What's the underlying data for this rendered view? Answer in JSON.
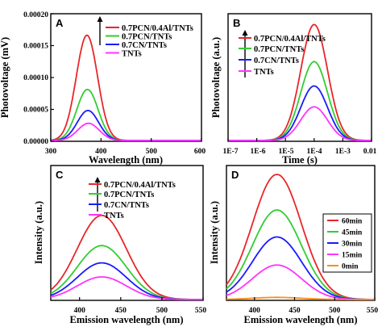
{
  "chart_data": [
    {
      "panel": "A",
      "type": "line",
      "xlabel": "Wavelength (nm)",
      "ylabel": "Photovoltage (mV)",
      "xlim": [
        300,
        600
      ],
      "ylim": [
        0,
        0.0002
      ],
      "x_ticks": [
        "300",
        "400",
        "500",
        "600"
      ],
      "y_ticks": [
        "0.00000",
        "0.00005",
        "0.00010",
        "0.00015",
        "0.00020"
      ],
      "legend_position": "top-right",
      "series": [
        {
          "name": "0.7PCN/0.4Al/TNTs",
          "color": "#e8262a",
          "peak_x": 372,
          "peak_y": 0.000165,
          "fwhm": 50
        },
        {
          "name": "0.7PCN/TNTs",
          "color": "#33cc33",
          "peak_x": 373,
          "peak_y": 8e-05,
          "fwhm": 50
        },
        {
          "name": "0.7CN/TNTs",
          "color": "#1a1aff",
          "peak_x": 374,
          "peak_y": 4.7e-05,
          "fwhm": 50
        },
        {
          "name": "TNTs",
          "color": "#ff33ff",
          "peak_x": 375,
          "peak_y": 2.7e-05,
          "fwhm": 50
        }
      ]
    },
    {
      "panel": "B",
      "type": "line",
      "xscale": "log",
      "xlabel": "Time (s)",
      "ylabel": "Photovoltage (a.u.)",
      "xlim": [
        1e-07,
        0.01
      ],
      "ylim": [
        0,
        1.1
      ],
      "x_ticks": [
        "1E-7",
        "1E-6",
        "1E-5",
        "1E-4",
        "1E-3",
        "0.01"
      ],
      "legend_position": "top-left",
      "series": [
        {
          "name": "0.7PCN/0.4Al/TNTs",
          "color": "#e8262a",
          "peak_x": 0.0001,
          "peak_y": 1.0,
          "width_decades": 1.1
        },
        {
          "name": "0.7PCN/TNTs",
          "color": "#33cc33",
          "peak_x": 0.0001,
          "peak_y": 0.68,
          "width_decades": 1.1
        },
        {
          "name": "0.7CN/TNTs",
          "color": "#1a1aff",
          "peak_x": 0.0001,
          "peak_y": 0.47,
          "width_decades": 1.1
        },
        {
          "name": "TNTs",
          "color": "#ff33ff",
          "peak_x": 0.0001,
          "peak_y": 0.29,
          "width_decades": 1.1
        }
      ]
    },
    {
      "panel": "C",
      "type": "line",
      "xlabel": "Emission wavelength (nm)",
      "ylabel": "Intensity (a.u.)",
      "xlim": [
        365,
        550
      ],
      "ylim": [
        0,
        1.25
      ],
      "x_ticks": [
        "400",
        "450",
        "500",
        "550"
      ],
      "legend_position": "top-center",
      "series": [
        {
          "name": "0.7PCN/0.4Al/TNTs",
          "color": "#e8262a",
          "peak_x": 427,
          "peak_y": 0.78,
          "fwhm": 70
        },
        {
          "name": "0.7PCN/TNTs",
          "color": "#33cc33",
          "peak_x": 427,
          "peak_y": 0.5,
          "fwhm": 70
        },
        {
          "name": "0.7CN/TNTs",
          "color": "#1a1aff",
          "peak_x": 427,
          "peak_y": 0.34,
          "fwhm": 70
        },
        {
          "name": "TNTs",
          "color": "#ff33ff",
          "peak_x": 427,
          "peak_y": 0.21,
          "fwhm": 70
        }
      ]
    },
    {
      "panel": "D",
      "type": "line",
      "xlabel": "Emission wavelength (nm)",
      "ylabel": "Intensity (a.u.)",
      "xlim": [
        365,
        550
      ],
      "ylim": [
        0,
        1.25
      ],
      "x_ticks": [
        "400",
        "450",
        "500",
        "550"
      ],
      "legend_position": "right",
      "series": [
        {
          "name": "60min",
          "color": "#e8262a",
          "peak_x": 428,
          "peak_y": 1.16,
          "fwhm": 72
        },
        {
          "name": "45min",
          "color": "#33cc33",
          "peak_x": 428,
          "peak_y": 0.83,
          "fwhm": 72
        },
        {
          "name": "30min",
          "color": "#1a1aff",
          "peak_x": 428,
          "peak_y": 0.58,
          "fwhm": 72
        },
        {
          "name": "15min",
          "color": "#ff33ff",
          "peak_x": 428,
          "peak_y": 0.32,
          "fwhm": 72
        },
        {
          "name": "0min",
          "color": "#ff8c1a",
          "peak_x": 428,
          "peak_y": 0.02,
          "fwhm": 72
        }
      ]
    }
  ]
}
